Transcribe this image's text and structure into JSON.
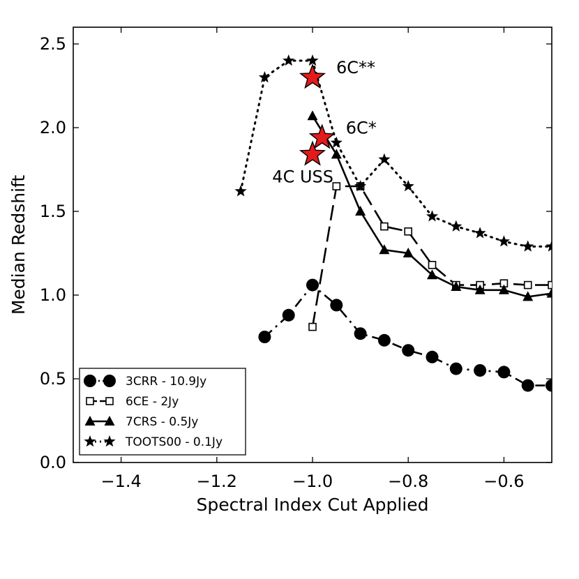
{
  "chart_data": {
    "type": "line",
    "xlabel": "Spectral Index Cut Applied",
    "ylabel": "Median Redshift",
    "xlim": [
      -1.5,
      -0.5
    ],
    "ylim": [
      0.0,
      2.6
    ],
    "xticks": [
      -1.4,
      -1.2,
      -1.0,
      -0.8,
      -0.6
    ],
    "yticks": [
      0.0,
      0.5,
      1.0,
      1.5,
      2.0,
      2.5
    ],
    "xtick_labels": [
      "−1.4",
      "−1.2",
      "−1.0",
      "−0.8",
      "−0.6"
    ],
    "ytick_labels": [
      "0.0",
      "0.5",
      "1.0",
      "1.5",
      "2.0",
      "2.5"
    ],
    "grid": false,
    "legend_position": "lower-left",
    "series": [
      {
        "name": "3CRR - 10.9Jy",
        "marker": "circle",
        "line_style": "dash-dot",
        "x": [
          -1.1,
          -1.05,
          -1.0,
          -0.95,
          -0.9,
          -0.85,
          -0.8,
          -0.75,
          -0.7,
          -0.65,
          -0.6,
          -0.55,
          -0.5
        ],
        "y": [
          0.75,
          0.88,
          1.06,
          0.94,
          0.77,
          0.73,
          0.67,
          0.63,
          0.56,
          0.55,
          0.54,
          0.46,
          0.46
        ]
      },
      {
        "name": "6CE - 2Jy",
        "marker": "open-square",
        "line_style": "dashed",
        "x": [
          -1.0,
          -0.95,
          -0.9,
          -0.85,
          -0.8,
          -0.75,
          -0.7,
          -0.65,
          -0.6,
          -0.55,
          -0.5
        ],
        "y": [
          0.81,
          1.65,
          1.65,
          1.41,
          1.38,
          1.18,
          1.06,
          1.06,
          1.07,
          1.06,
          1.06
        ]
      },
      {
        "name": "7CRS - 0.5Jy",
        "marker": "triangle",
        "line_style": "solid",
        "x": [
          -1.0,
          -0.95,
          -0.9,
          -0.85,
          -0.8,
          -0.75,
          -0.7,
          -0.65,
          -0.6,
          -0.55,
          -0.5
        ],
        "y": [
          2.07,
          1.84,
          1.5,
          1.27,
          1.25,
          1.12,
          1.05,
          1.03,
          1.03,
          0.99,
          1.01
        ]
      },
      {
        "name": "TOOTS00 - 0.1Jy",
        "marker": "star",
        "line_style": "dotted",
        "x": [
          -1.15,
          -1.1,
          -1.05,
          -1.0,
          -0.95,
          -0.9,
          -0.85,
          -0.8,
          -0.75,
          -0.7,
          -0.65,
          -0.6,
          -0.55,
          -0.5
        ],
        "y": [
          1.62,
          2.3,
          2.4,
          2.4,
          1.91,
          1.65,
          1.81,
          1.65,
          1.47,
          1.41,
          1.37,
          1.32,
          1.29,
          1.29
        ]
      }
    ],
    "highlight_points": [
      {
        "label": "6C**",
        "x": -1.0,
        "y": 2.3,
        "label_side": "right"
      },
      {
        "label": "6C*",
        "x": -0.98,
        "y": 1.94,
        "label_side": "right"
      },
      {
        "label": "4C USS",
        "x": -1.0,
        "y": 1.84,
        "label_side": "below-left"
      }
    ],
    "colors": {
      "series": "#000000",
      "highlight_fill": "#e41a1c",
      "highlight_stroke": "#000000"
    }
  }
}
